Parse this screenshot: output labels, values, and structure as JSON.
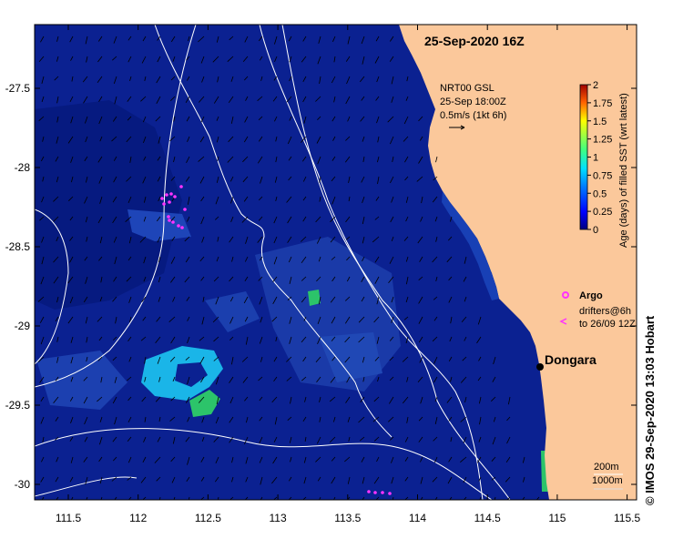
{
  "title": "25-Sep-2020 16Z",
  "current_info": {
    "line1": "NRT00 GSL",
    "line2": "25-Sep 18:00Z",
    "line3": "0.5m/s (1kt 6h)"
  },
  "colorbar": {
    "label": "Age (days) of filled SST (wrt latest)",
    "ticks": [
      "0",
      "0.25",
      "0.5",
      "0.75",
      "1",
      "1.25",
      "1.5",
      "1.75",
      "2"
    ]
  },
  "argo_label": "Argo",
  "drifters_line1": "drifters@6h",
  "drifters_line2": "to 26/09 12Z",
  "place_label": "Dongara",
  "depth_200": "200m",
  "depth_1000": "1000m",
  "credit": "© IMOS 29-Sep-2020 13:03 Hobart",
  "x_ticks": [
    "111.5",
    "112",
    "112.5",
    "113",
    "113.5",
    "114",
    "114.5",
    "115",
    "115.5"
  ],
  "y_ticks": [
    "-27.5",
    "-28",
    "-28.5",
    "-29",
    "-29.5",
    "-30"
  ],
  "colors": {
    "ocean": "#0a1f8a",
    "land": "#fbc89a",
    "contour": "#ffffff",
    "argo": "#ff33ff",
    "cyan_patch": "#19b8e6",
    "green_patch": "#29c56e"
  }
}
